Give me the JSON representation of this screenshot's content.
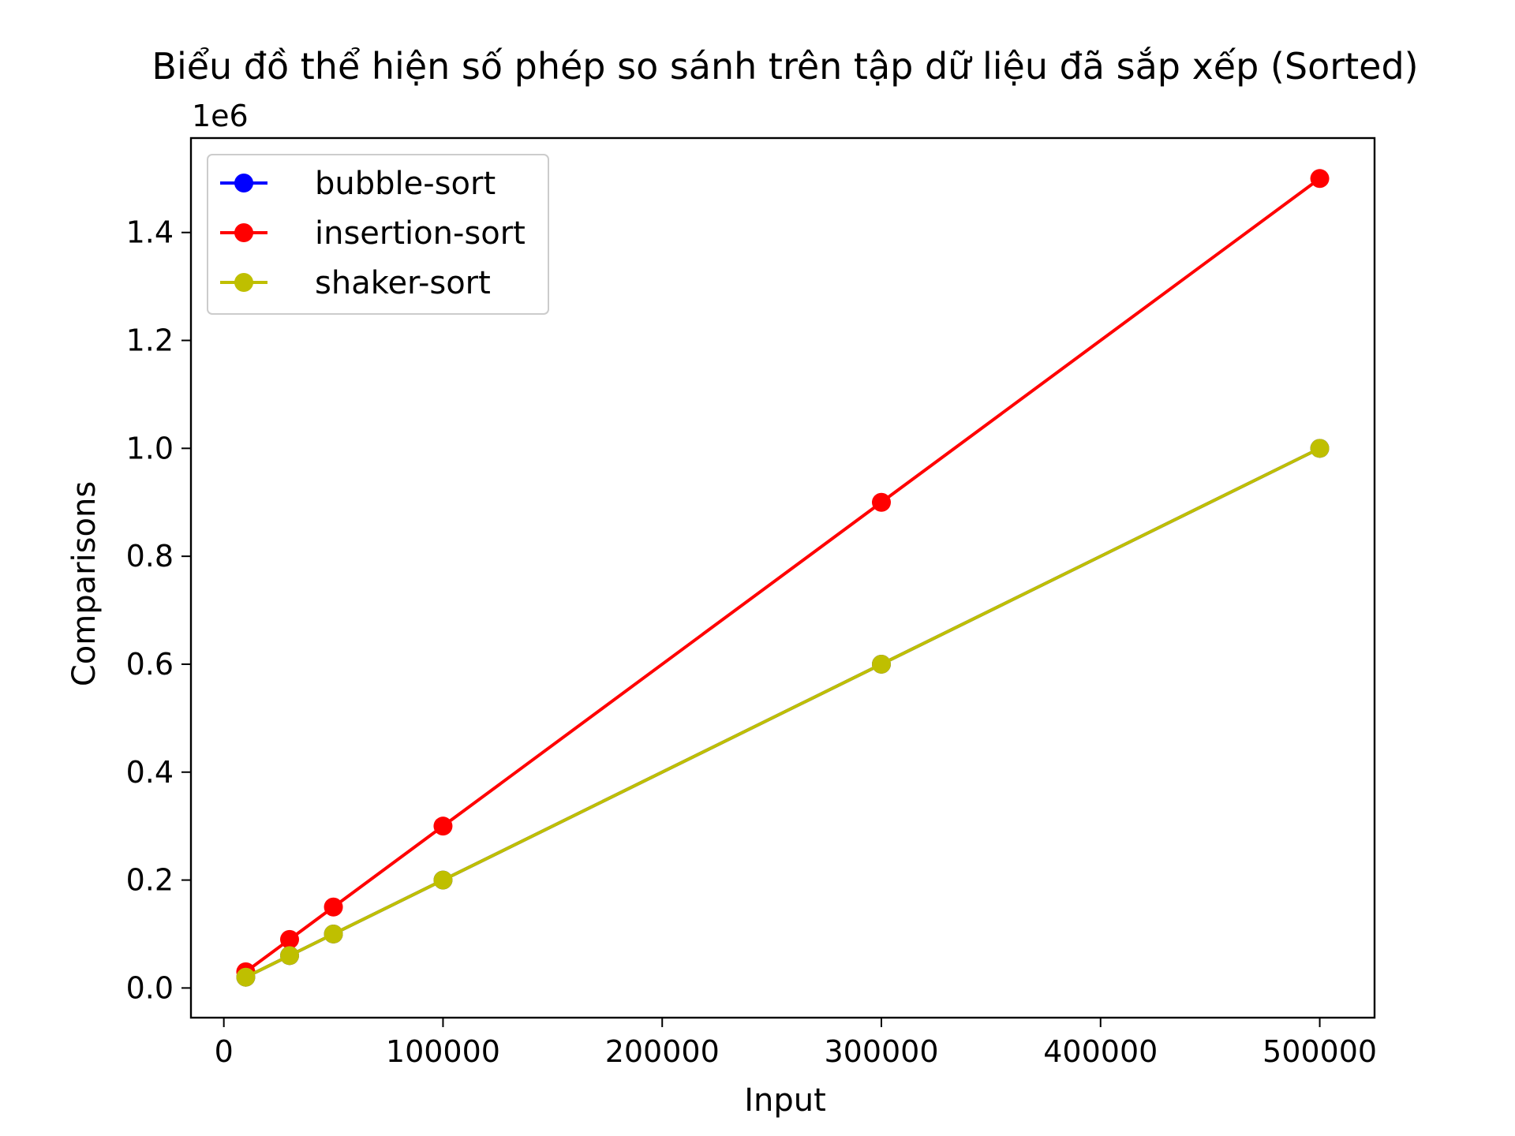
{
  "chart_data": {
    "type": "line",
    "title": "Biểu đồ thể hiện số phép so sánh trên tập dữ liệu đã sắp xếp (Sorted)",
    "xlabel": "Input",
    "ylabel": "Comparisons",
    "y_offset_label": "1e6",
    "xlim": [
      -15000,
      525000
    ],
    "ylim": [
      -0.055,
      1.575
    ],
    "x_ticks": [
      0,
      100000,
      200000,
      300000,
      400000,
      500000
    ],
    "x_tick_labels": [
      "0",
      "100000",
      "200000",
      "300000",
      "400000",
      "500000"
    ],
    "y_ticks": [
      0.0,
      0.2,
      0.4,
      0.6,
      0.8,
      1.0,
      1.2,
      1.4
    ],
    "y_tick_labels": [
      "0.0",
      "0.2",
      "0.4",
      "0.6",
      "0.8",
      "1.0",
      "1.2",
      "1.4"
    ],
    "grid": false,
    "legend_position": "top-left",
    "x": [
      10000,
      30000,
      50000,
      100000,
      300000,
      500000
    ],
    "series": [
      {
        "name": "bubble-sort",
        "color": "#0000ff",
        "values": [
          0.02,
          0.06,
          0.1,
          0.2,
          0.6,
          1.0
        ]
      },
      {
        "name": "insertion-sort",
        "color": "#ff0000",
        "values": [
          0.03,
          0.09,
          0.15,
          0.3,
          0.9,
          1.5
        ]
      },
      {
        "name": "shaker-sort",
        "color": "#bfbf00",
        "values": [
          0.02,
          0.06,
          0.1,
          0.2,
          0.6,
          1.0
        ]
      }
    ]
  }
}
